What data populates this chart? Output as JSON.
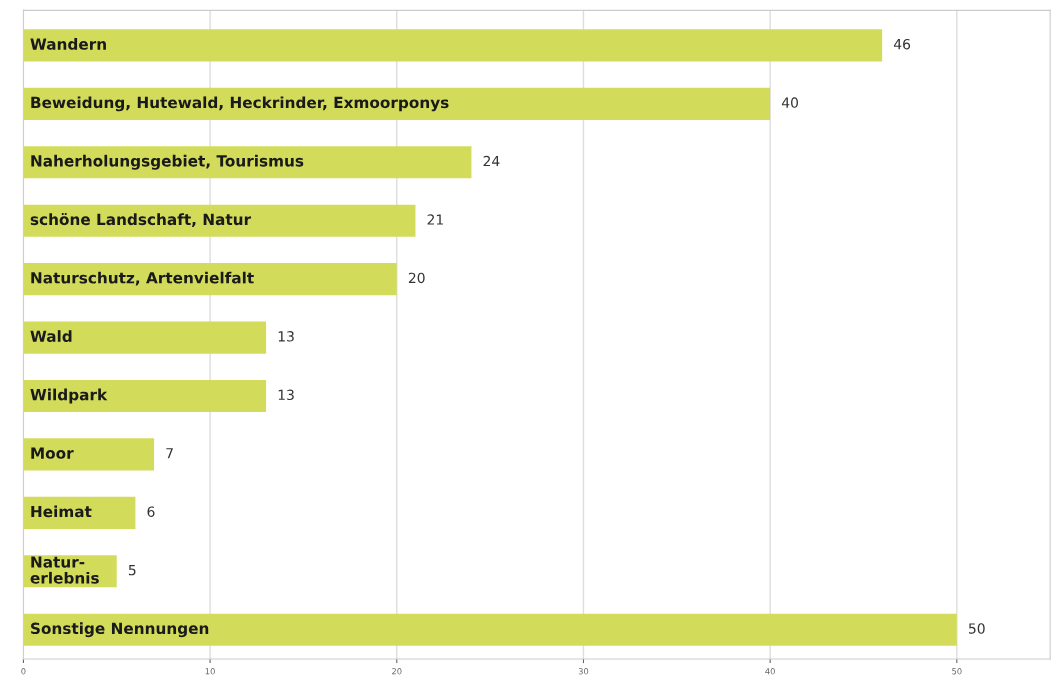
{
  "chart_data": {
    "type": "bar",
    "orientation": "horizontal",
    "categories": [
      "Wandern",
      "Beweidung, Hutewald, Heckrinder, Exmoorponys",
      "Naherholungsgebiet, Tourismus",
      "schöne Landschaft, Natur",
      "Naturschutz, Artenvielfalt",
      "Wald",
      "Wildpark",
      "Moor",
      "Heimat",
      "Natur-\nerlebnis",
      "Sonstige Nennungen"
    ],
    "values": [
      46,
      40,
      24,
      21,
      20,
      13,
      13,
      7,
      6,
      5,
      50
    ],
    "color": "#d3dc5a",
    "data_labels": true,
    "grid": "x",
    "xlim": [
      0,
      55
    ],
    "xticks": [
      0,
      10,
      20,
      30,
      40,
      50
    ]
  }
}
